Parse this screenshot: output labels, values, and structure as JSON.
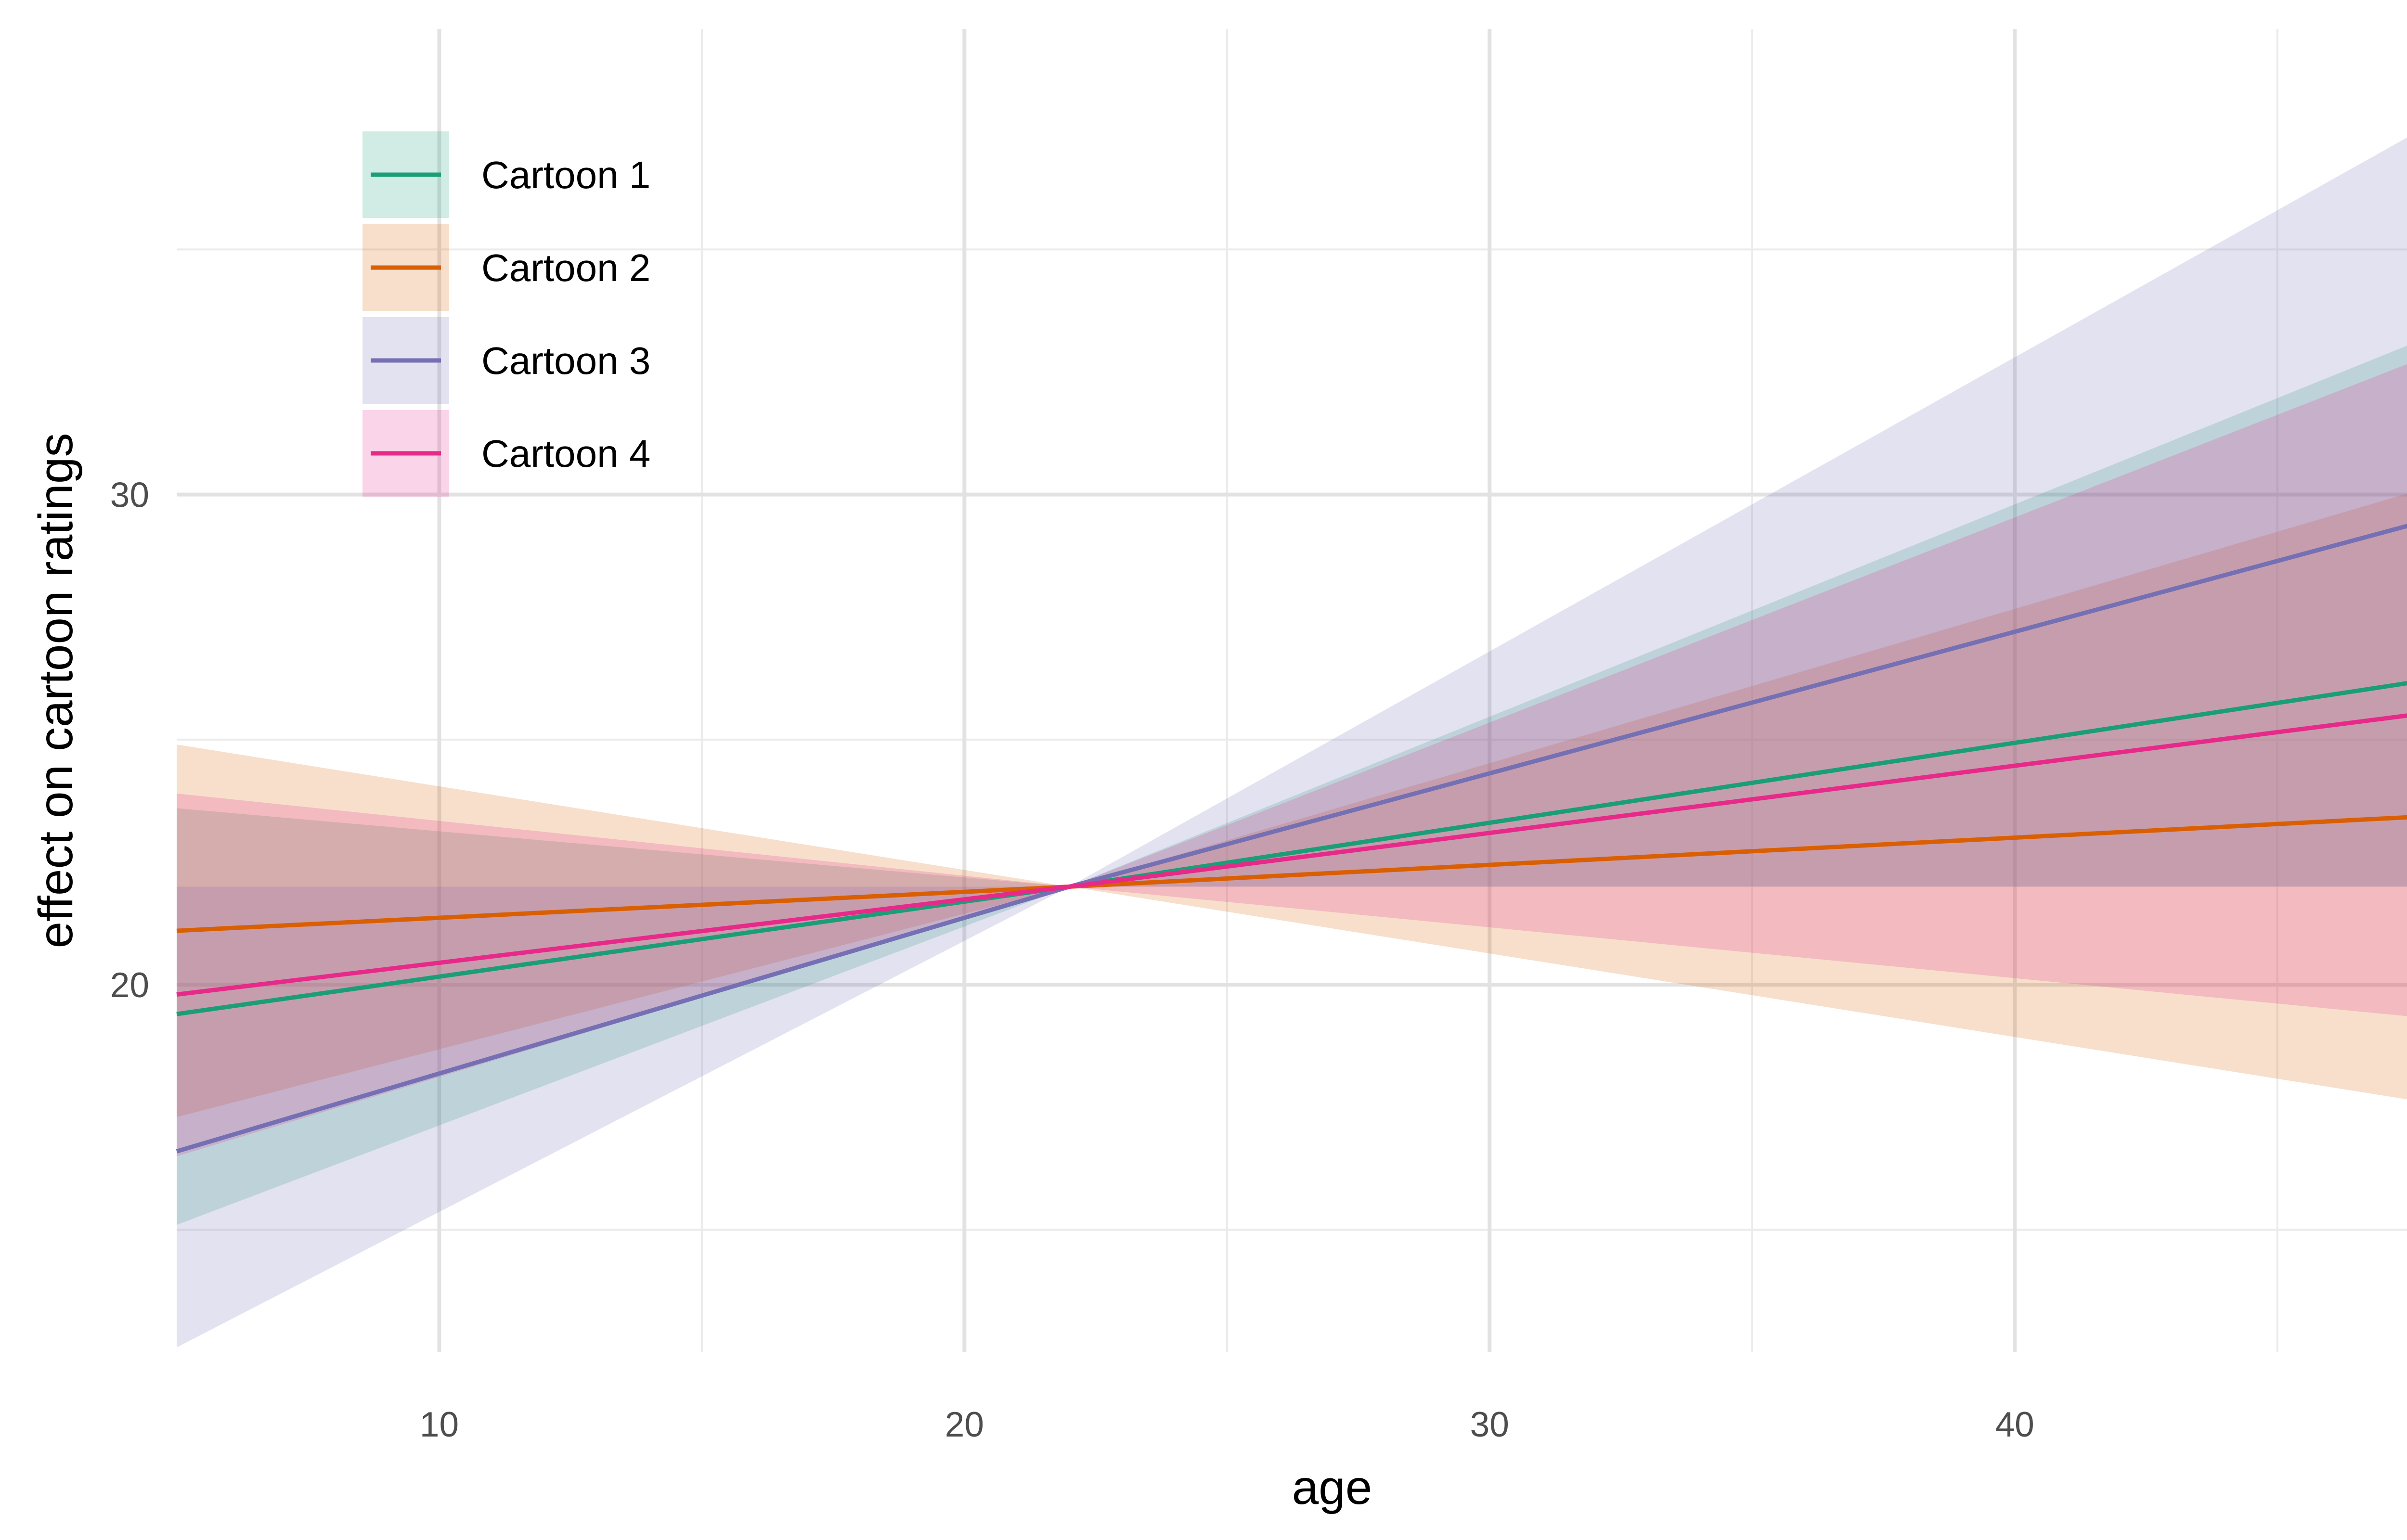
{
  "chart_data": {
    "type": "line",
    "xlabel": "age",
    "ylabel": "effect on cartoon ratings",
    "xlim": [
      5,
      49
    ],
    "ylim": [
      12.5,
      39.5
    ],
    "x_ticks": [
      10,
      20,
      30,
      40
    ],
    "y_ticks": [
      20,
      30
    ],
    "x_minor_grid": [
      15,
      25,
      35,
      45
    ],
    "y_minor_grid": [
      15,
      25,
      35
    ],
    "grid": true,
    "legend_position": "top-left",
    "band_opacity": 0.2,
    "series": [
      {
        "name": "Cartoon 1",
        "color": "#1b9e77",
        "x": [
          5,
          22,
          49
        ],
        "y": [
          19.4,
          22,
          26.4
        ],
        "lower": [
          15.1,
          22,
          22
        ],
        "upper": [
          23.6,
          22,
          33.7
        ]
      },
      {
        "name": "Cartoon 2",
        "color": "#d95f02",
        "x": [
          5,
          22,
          49
        ],
        "y": [
          21.1,
          22,
          23.5
        ],
        "lower": [
          17.3,
          22,
          17.4
        ],
        "upper": [
          24.9,
          22,
          30.5
        ]
      },
      {
        "name": "Cartoon 3",
        "color": "#7570b3",
        "x": [
          5,
          22,
          49
        ],
        "y": [
          16.6,
          22,
          29.8
        ],
        "lower": [
          12.6,
          22,
          22
        ],
        "upper": [
          22,
          22,
          38.2
        ]
      },
      {
        "name": "Cartoon 4",
        "color": "#e7298a",
        "x": [
          5,
          22,
          49
        ],
        "y": [
          19.8,
          22,
          25.7
        ],
        "lower": [
          16.5,
          22,
          19.2
        ],
        "upper": [
          23.9,
          22,
          33.3
        ]
      }
    ]
  }
}
